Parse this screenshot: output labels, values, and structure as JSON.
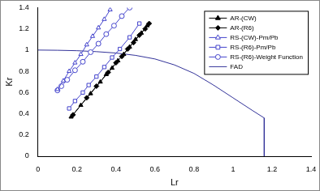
{
  "chart_data": {
    "type": "scatter",
    "x_label": "Lr",
    "y_label": "Kr",
    "xlim": [
      0,
      1.4
    ],
    "ylim": [
      0,
      1.4
    ],
    "xticks": [
      0,
      0.2,
      0.4,
      0.6,
      0.8,
      1,
      1.2,
      1.4
    ],
    "yticks": [
      0,
      0.2,
      0.4,
      0.6,
      0.8,
      1,
      1.2,
      1.4
    ],
    "grid": false,
    "legend": "top-right",
    "series": [
      {
        "name": "AR-(CW)",
        "color": "#000000",
        "marker": "triangle",
        "line_style": "solid",
        "x": [
          0.17,
          0.22,
          0.27,
          0.32,
          0.35,
          0.38,
          0.41,
          0.44,
          0.47,
          0.5,
          0.53,
          0.56
        ],
        "values": [
          0.37,
          0.48,
          0.59,
          0.7,
          0.77,
          0.83,
          0.9,
          0.96,
          1.03,
          1.1,
          1.16,
          1.23
        ]
      },
      {
        "name": "AR-(R6)",
        "color": "#000000",
        "marker": "diamond",
        "line_style": "solid",
        "x": [
          0.18,
          0.25,
          0.3,
          0.36,
          0.4,
          0.43,
          0.46,
          0.49,
          0.52,
          0.55,
          0.57
        ],
        "values": [
          0.39,
          0.55,
          0.66,
          0.79,
          0.88,
          0.94,
          1.01,
          1.07,
          1.14,
          1.2,
          1.25
        ]
      },
      {
        "name": "RS-(CW)-Pm/Pb",
        "color": "#4444cc",
        "marker": "open-triangle",
        "line_style": "solid",
        "x": [
          0.1,
          0.13,
          0.16,
          0.19,
          0.22,
          0.25,
          0.28,
          0.31,
          0.34,
          0.37
        ],
        "values": [
          0.63,
          0.71,
          0.8,
          0.88,
          0.96,
          1.05,
          1.13,
          1.21,
          1.29,
          1.38
        ]
      },
      {
        "name": "RS-(R6)-Pm/Pb",
        "color": "#4444cc",
        "marker": "open-square",
        "line_style": "solid",
        "x": [
          0.16,
          0.19,
          0.23,
          0.26,
          0.3,
          0.34,
          0.38,
          0.42,
          0.47,
          0.52
        ],
        "values": [
          0.45,
          0.52,
          0.6,
          0.67,
          0.75,
          0.84,
          0.93,
          1.01,
          1.12,
          1.25
        ]
      },
      {
        "name": "RS-(R6)-Weight Function",
        "color": "#4444cc",
        "marker": "open-circle",
        "line_style": "solid",
        "x": [
          0.1,
          0.12,
          0.15,
          0.19,
          0.23,
          0.27,
          0.31,
          0.35,
          0.39,
          0.43,
          0.47
        ],
        "values": [
          0.62,
          0.66,
          0.72,
          0.81,
          0.89,
          0.98,
          1.06,
          1.15,
          1.23,
          1.32,
          1.4
        ]
      },
      {
        "name": "FAD",
        "color": "#333399",
        "marker": "none",
        "line_style": "solid",
        "x": [
          0,
          0.1,
          0.2,
          0.3,
          0.4,
          0.5,
          0.6,
          0.7,
          0.8,
          0.9,
          1.0,
          1.1,
          1.16,
          1.16
        ],
        "values": [
          1.0,
          0.998,
          0.994,
          0.985,
          0.972,
          0.95,
          0.916,
          0.86,
          0.78,
          0.67,
          0.55,
          0.43,
          0.36,
          0
        ]
      }
    ]
  }
}
